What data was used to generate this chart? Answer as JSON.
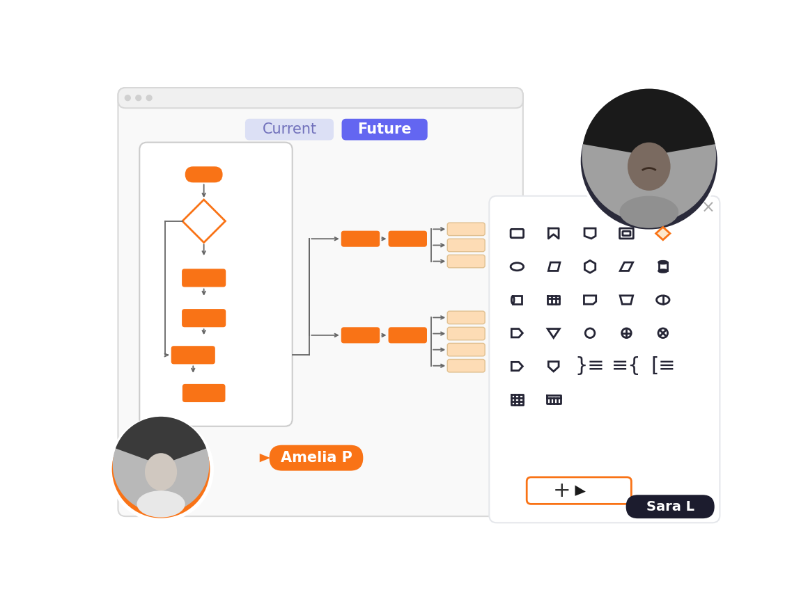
{
  "bg_color": "#ffffff",
  "orange": "#F97316",
  "orange_light": "#FDDCB5",
  "purple_light": "#dce0f5",
  "purple_dark": "#6366f1",
  "dark_navy": "#1c1c2e",
  "line_color": "#666666",
  "icon_color": "#252535",
  "shapes_border": "#e5e7eb",
  "browser_border": "#d8d8d8",
  "browser_bg": "#f9f9f9",
  "title_current": "Current",
  "title_future": "Future",
  "amelia_label": "Amelia P",
  "sara_label": "Sara L",
  "dot_color": "#cccccc"
}
